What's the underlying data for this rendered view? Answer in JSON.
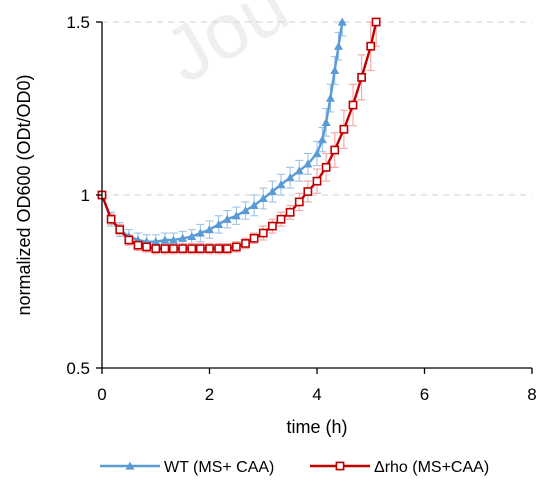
{
  "chart_data": {
    "type": "line",
    "title": "",
    "xlabel": "time (h)",
    "ylabel": "normalized OD600 (ODt/OD0)",
    "xlim": [
      0,
      8
    ],
    "ylim": [
      0.5,
      1.5
    ],
    "xticks": [
      0,
      2,
      4,
      6,
      8
    ],
    "yticks": [
      0.5,
      1,
      1.5
    ],
    "xtick_labels": [
      "0",
      "2",
      "4",
      "6",
      "8"
    ],
    "ytick_labels": [
      "0.5",
      "1",
      "1.5"
    ],
    "grid": "dashed horizontal at 1 and 1.5",
    "legend_position": "bottom",
    "watermark_text": "Jou",
    "series": [
      {
        "name": "WT (MS+ CAA)",
        "color": "#5B9BD5",
        "errorbar_color": "#9DC3E6",
        "marker": "triangle",
        "points": [
          [
            0,
            1.0
          ],
          [
            0.17,
            0.93
          ],
          [
            0.33,
            0.9
          ],
          [
            0.5,
            0.88
          ],
          [
            0.67,
            0.87
          ],
          [
            0.83,
            0.865
          ],
          [
            1.0,
            0.865
          ],
          [
            1.17,
            0.87
          ],
          [
            1.33,
            0.87
          ],
          [
            1.5,
            0.875
          ],
          [
            1.67,
            0.88
          ],
          [
            1.83,
            0.89
          ],
          [
            2.0,
            0.9
          ],
          [
            2.17,
            0.915
          ],
          [
            2.33,
            0.93
          ],
          [
            2.5,
            0.94
          ],
          [
            2.67,
            0.955
          ],
          [
            2.83,
            0.97
          ],
          [
            3.0,
            0.99
          ],
          [
            3.17,
            1.01
          ],
          [
            3.33,
            1.03
          ],
          [
            3.5,
            1.05
          ],
          [
            3.67,
            1.07
          ],
          [
            3.83,
            1.09
          ],
          [
            4.0,
            1.12
          ],
          [
            4.1,
            1.16
          ],
          [
            4.17,
            1.21
          ],
          [
            4.25,
            1.28
          ],
          [
            4.33,
            1.36
          ],
          [
            4.4,
            1.43
          ],
          [
            4.47,
            1.5
          ]
        ],
        "errors": [
          0.0,
          0.02,
          0.02,
          0.02,
          0.02,
          0.02,
          0.02,
          0.02,
          0.02,
          0.02,
          0.02,
          0.025,
          0.025,
          0.025,
          0.025,
          0.025,
          0.025,
          0.03,
          0.03,
          0.03,
          0.03,
          0.03,
          0.03,
          0.03,
          0.035,
          0.035,
          0.04,
          0.04,
          0.04,
          0.04,
          0.04
        ]
      },
      {
        "name": "Δrho (MS+CAA)",
        "color": "#C00000",
        "errorbar_color": "#F4A3A3",
        "marker": "square",
        "points": [
          [
            0,
            1.0
          ],
          [
            0.17,
            0.93
          ],
          [
            0.33,
            0.9
          ],
          [
            0.5,
            0.87
          ],
          [
            0.67,
            0.855
          ],
          [
            0.83,
            0.85
          ],
          [
            1.0,
            0.845
          ],
          [
            1.17,
            0.845
          ],
          [
            1.33,
            0.845
          ],
          [
            1.5,
            0.845
          ],
          [
            1.67,
            0.845
          ],
          [
            1.83,
            0.845
          ],
          [
            2.0,
            0.845
          ],
          [
            2.17,
            0.845
          ],
          [
            2.33,
            0.845
          ],
          [
            2.5,
            0.85
          ],
          [
            2.67,
            0.86
          ],
          [
            2.83,
            0.875
          ],
          [
            3.0,
            0.89
          ],
          [
            3.17,
            0.91
          ],
          [
            3.33,
            0.93
          ],
          [
            3.5,
            0.95
          ],
          [
            3.67,
            0.98
          ],
          [
            3.83,
            1.01
          ],
          [
            4.0,
            1.04
          ],
          [
            4.17,
            1.08
          ],
          [
            4.33,
            1.13
          ],
          [
            4.5,
            1.19
          ],
          [
            4.67,
            1.26
          ],
          [
            4.83,
            1.34
          ],
          [
            5.0,
            1.43
          ],
          [
            5.1,
            1.5
          ]
        ],
        "errors": [
          0.0,
          0.015,
          0.015,
          0.015,
          0.015,
          0.015,
          0.015,
          0.015,
          0.015,
          0.015,
          0.015,
          0.015,
          0.015,
          0.015,
          0.015,
          0.015,
          0.015,
          0.015,
          0.02,
          0.02,
          0.02,
          0.02,
          0.025,
          0.03,
          0.035,
          0.04,
          0.05,
          0.055,
          0.06,
          0.065,
          0.07,
          0.07
        ]
      }
    ]
  }
}
